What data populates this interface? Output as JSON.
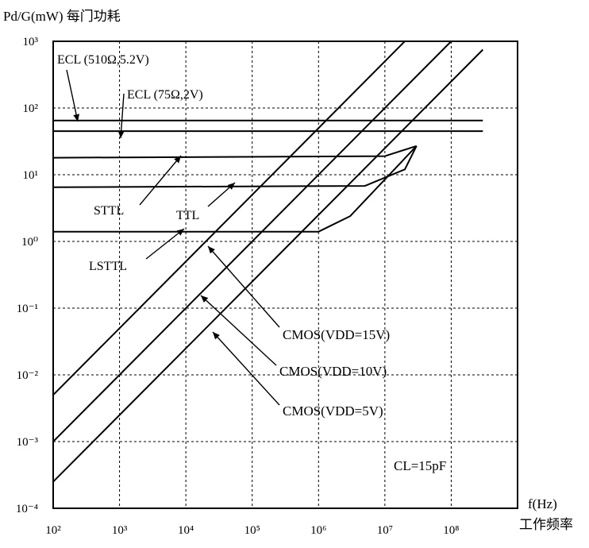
{
  "chart_data": {
    "type": "line",
    "title": "",
    "ylabel": "Pd/G(mW) 每门功耗",
    "xlabel_unit": "f(Hz)",
    "xlabel_cn": "工作频率",
    "x_scale": "log",
    "y_scale": "log",
    "xlim": [
      100,
      1000000000
    ],
    "ylim": [
      0.0001,
      1000
    ],
    "grid": true,
    "x_ticks": [
      {
        "value": 100,
        "label": "10²"
      },
      {
        "value": 1000,
        "label": "10³"
      },
      {
        "value": 10000,
        "label": "10⁴"
      },
      {
        "value": 100000,
        "label": "10⁵"
      },
      {
        "value": 1000000,
        "label": "10⁶"
      },
      {
        "value": 10000000,
        "label": "10⁷"
      },
      {
        "value": 100000000,
        "label": "10⁸"
      }
    ],
    "y_ticks": [
      {
        "value": 1000,
        "label": "10³"
      },
      {
        "value": 100,
        "label": "10²"
      },
      {
        "value": 10,
        "label": "10¹"
      },
      {
        "value": 1,
        "label": "10⁰"
      },
      {
        "value": 0.1,
        "label": "10⁻¹"
      },
      {
        "value": 0.01,
        "label": "10⁻²"
      },
      {
        "value": 0.001,
        "label": "10⁻³"
      },
      {
        "value": 0.0001,
        "label": "10⁻⁴"
      }
    ],
    "series": [
      {
        "name": "ECL (510Ω,5.2V)",
        "points": [
          [
            100,
            65
          ],
          [
            300000000,
            65
          ]
        ]
      },
      {
        "name": "ECL (75Ω,2V)",
        "points": [
          [
            100,
            45
          ],
          [
            300000000,
            45
          ]
        ]
      },
      {
        "name": "STTL",
        "points": [
          [
            100,
            18
          ],
          [
            10000000,
            19
          ],
          [
            30000000,
            27
          ]
        ]
      },
      {
        "name": "TTL",
        "points": [
          [
            100,
            6.5
          ],
          [
            5000000,
            6.8
          ],
          [
            20000000,
            12
          ],
          [
            30000000,
            27
          ]
        ]
      },
      {
        "name": "LSTTL",
        "points": [
          [
            100,
            1.4
          ],
          [
            1000000,
            1.4
          ],
          [
            3000000,
            2.4
          ],
          [
            30000000,
            27
          ]
        ]
      },
      {
        "name": "CMOS(VDD=15V)",
        "points": [
          [
            100,
            0.005
          ],
          [
            30000000,
            1500
          ]
        ]
      },
      {
        "name": "CMOS(VDD=10V)",
        "points": [
          [
            100,
            0.001
          ],
          [
            100000000,
            1000
          ]
        ]
      },
      {
        "name": "CMOS(VDD=5V)",
        "points": [
          [
            100,
            0.00025
          ],
          [
            300000000,
            750
          ]
        ]
      }
    ],
    "annotations": {
      "ecl1": "ECL  (510Ω,5.2V)",
      "ecl2": "ECL  (75Ω,2V)",
      "sttl": "STTL",
      "ttl": "TTL",
      "lsttl": "LSTTL",
      "cmos15": "CMOS(VDD=15V)",
      "cmos10": "CMOS(VDD=10V)",
      "cmos5": "CMOS(VDD=5V)",
      "cl": "CL=15pF"
    }
  }
}
